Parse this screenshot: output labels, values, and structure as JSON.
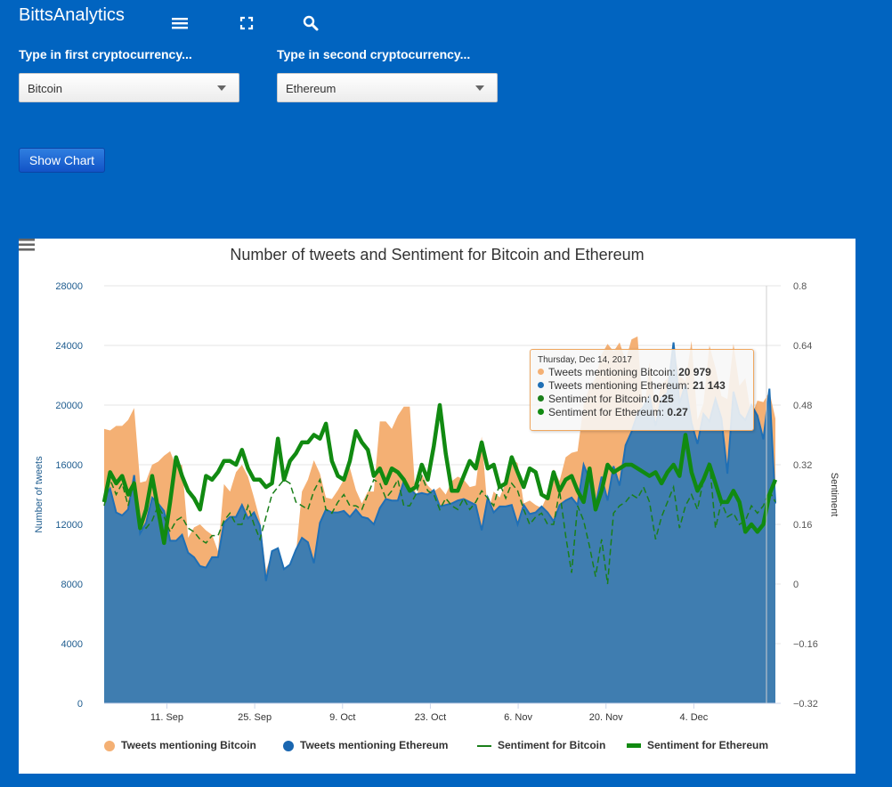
{
  "app": {
    "title": "BittsAnalytics"
  },
  "toolbar": {
    "icons": [
      "menu-icon",
      "fullscreen-icon",
      "search-icon"
    ]
  },
  "form": {
    "first_label": "Type in first cryptocurrency...",
    "first_value": "Bitcoin",
    "second_label": "Type in second cryptocurrency...",
    "second_value": "Ethereum",
    "button_label": "Show Chart"
  },
  "colors": {
    "page_bg": "#0164c0",
    "bitcoin_tweets": "#f4b074",
    "ethereum_tweets": "#3f7db0",
    "sentiment_bitcoin": "#1a7f1a",
    "sentiment_ethereum": "#118a11"
  },
  "tooltip": {
    "date": "Thursday, Dec 14, 2017",
    "rows": [
      {
        "label": "Tweets mentioning Bitcoin:",
        "value": "20 979",
        "color": "#f4b074"
      },
      {
        "label": "Tweets mentioning Ethereum:",
        "value": "21 143",
        "color": "#1f6fb5"
      },
      {
        "label": "Sentiment for Bitcoin:",
        "value": "0.25",
        "color": "#1a7f1a"
      },
      {
        "label": "Sentiment for Ethereum:",
        "value": "0.27",
        "color": "#118a11"
      }
    ]
  },
  "chart_data": {
    "type": "area",
    "title": "Number of tweets and Sentiment for Bitcoin and Ethereum",
    "xlabel": "",
    "ylabel": "Number of tweets",
    "y2label": "Sentiment",
    "x_start": "2017-09-01",
    "x_end": "2017-12-17",
    "x_ticks": [
      "11. Sep",
      "25. Sep",
      "9. Oct",
      "23. Oct",
      "6. Nov",
      "20. Nov",
      "4. Dec"
    ],
    "ylim": [
      0,
      28000
    ],
    "y_ticks": [
      "0",
      "4000",
      "8000",
      "12000",
      "16000",
      "20000",
      "24000",
      "28000"
    ],
    "y2lim": [
      -0.32,
      0.8
    ],
    "y2_ticks": [
      "−0.32",
      "−0.16",
      "0",
      "0.16",
      "0.32",
      "0.48",
      "0.64",
      "0.8"
    ],
    "grid": true,
    "legend_position": "bottom",
    "series": [
      {
        "name": "Tweets mentioning Bitcoin",
        "kind": "area",
        "values": [
          18400,
          18300,
          18600,
          18600,
          19000,
          19800,
          14800,
          14900,
          16000,
          16200,
          16600,
          16900,
          15900,
          16000,
          11100,
          11800,
          12000,
          11600,
          11300,
          10200,
          14700,
          14200,
          15500,
          16000,
          15200,
          13800,
          12300,
          8900,
          10100,
          9900,
          9100,
          9000,
          10000,
          14200,
          15000,
          16300,
          15400,
          13800,
          13700,
          14300,
          15000,
          15800,
          14300,
          13400,
          14200,
          14200,
          18900,
          18900,
          18400,
          19300,
          19900,
          19900,
          13600,
          15400,
          14600,
          14200,
          14500,
          14000,
          14900,
          15200,
          15000,
          14500,
          14600,
          17900,
          12800,
          14200,
          13800,
          14800,
          16400,
          16100,
          13400,
          13600,
          13300,
          13100,
          14000,
          15700,
          14900,
          16500,
          16800,
          16900,
          20000,
          21200,
          21800,
          23400,
          24100,
          23600,
          24200,
          23000,
          24400,
          24600,
          19000,
          22900,
          19800,
          21400,
          21800,
          23700,
          22000,
          21600,
          24300,
          19000,
          20100,
          24000,
          22500,
          20600,
          20400,
          24100,
          21300,
          21800,
          19200,
          20300,
          20200,
          20900,
          19100
        ]
      },
      {
        "name": "Tweets mentioning Ethereum",
        "kind": "area",
        "values": [
          13800,
          14400,
          12800,
          12600,
          13000,
          15300,
          11400,
          12100,
          13800,
          13400,
          12900,
          10900,
          10900,
          11300,
          10100,
          9800,
          9200,
          9100,
          9800,
          9800,
          12100,
          12500,
          12500,
          13300,
          12400,
          12800,
          11900,
          8200,
          10200,
          10400,
          9000,
          9300,
          10300,
          11100,
          10800,
          9400,
          12100,
          13000,
          12800,
          12800,
          12900,
          12500,
          13000,
          12500,
          12400,
          12000,
          13100,
          13700,
          13600,
          13600,
          14900,
          14400,
          14000,
          14100,
          14000,
          14300,
          13200,
          13300,
          13400,
          13600,
          13700,
          13500,
          13300,
          11600,
          13800,
          12800,
          13200,
          13200,
          13300,
          12000,
          13300,
          12700,
          12800,
          13200,
          12800,
          12200,
          13300,
          13600,
          13800,
          13300,
          16000,
          15000,
          13300,
          15200,
          13600,
          15900,
          14600,
          17300,
          18200,
          19400,
          19900,
          20600,
          18600,
          20500,
          20800,
          24200,
          20100,
          21400,
          18800,
          17400,
          19400,
          18900,
          20400,
          19100,
          15400,
          20900,
          19400,
          19000,
          20000,
          19300,
          17700,
          21100,
          13400
        ]
      },
      {
        "name": "Sentiment for Bitcoin",
        "kind": "line",
        "values": [
          0.21,
          0.28,
          0.24,
          0.27,
          0.21,
          0.28,
          0.16,
          0.15,
          0.17,
          0.21,
          0.18,
          0.14,
          0.17,
          0.18,
          0.15,
          0.14,
          0.12,
          0.11,
          0.13,
          0.13,
          0.17,
          0.19,
          0.16,
          0.16,
          0.21,
          0.16,
          0.12,
          0.18,
          0.24,
          0.26,
          0.28,
          0.27,
          0.22,
          0.21,
          0.2,
          0.25,
          0.28,
          0.2,
          0.19,
          0.22,
          0.24,
          0.21,
          0.21,
          0.2,
          0.24,
          0.28,
          0.27,
          0.23,
          0.25,
          0.28,
          0.21,
          0.21,
          0.24,
          0.29,
          0.25,
          0.24,
          0.2,
          0.23,
          0.21,
          0.2,
          0.23,
          0.2,
          0.22,
          0.25,
          0.23,
          0.21,
          0.27,
          0.23,
          0.27,
          0.25,
          0.2,
          0.16,
          0.18,
          0.19,
          0.16,
          0.16,
          0.25,
          0.13,
          0.03,
          0.21,
          0.17,
          0.1,
          0.02,
          0.12,
          0.0,
          0.19,
          0.21,
          0.22,
          0.24,
          0.23,
          0.26,
          0.22,
          0.12,
          0.18,
          0.22,
          0.26,
          0.15,
          0.21,
          0.24,
          0.2,
          0.28,
          0.33,
          0.15,
          0.22,
          0.18,
          0.19,
          0.16,
          0.17,
          0.21,
          0.19,
          0.21,
          0.25,
          0.22
        ]
      },
      {
        "name": "Sentiment for Ethereum",
        "kind": "line",
        "values": [
          0.22,
          0.3,
          0.27,
          0.29,
          0.24,
          0.27,
          0.15,
          0.2,
          0.29,
          0.2,
          0.11,
          0.22,
          0.34,
          0.29,
          0.25,
          0.23,
          0.2,
          0.29,
          0.28,
          0.3,
          0.33,
          0.33,
          0.32,
          0.36,
          0.31,
          0.28,
          0.28,
          0.26,
          0.27,
          0.39,
          0.28,
          0.33,
          0.35,
          0.38,
          0.38,
          0.4,
          0.39,
          0.43,
          0.33,
          0.29,
          0.28,
          0.33,
          0.41,
          0.38,
          0.36,
          0.29,
          0.31,
          0.27,
          0.31,
          0.3,
          0.28,
          0.25,
          0.26,
          0.32,
          0.28,
          0.37,
          0.48,
          0.35,
          0.25,
          0.25,
          0.29,
          0.33,
          0.31,
          0.38,
          0.31,
          0.32,
          0.26,
          0.27,
          0.34,
          0.3,
          0.26,
          0.31,
          0.3,
          0.24,
          0.23,
          0.3,
          0.25,
          0.28,
          0.29,
          0.25,
          0.22,
          0.31,
          0.2,
          0.25,
          0.32,
          0.3,
          0.31,
          0.32,
          0.32,
          0.31,
          0.3,
          0.29,
          0.3,
          0.27,
          0.3,
          0.32,
          0.29,
          0.4,
          0.3,
          0.25,
          0.28,
          0.32,
          0.27,
          0.22,
          0.22,
          0.25,
          0.22,
          0.14,
          0.16,
          0.14,
          0.16,
          0.24,
          0.28
        ]
      }
    ]
  }
}
